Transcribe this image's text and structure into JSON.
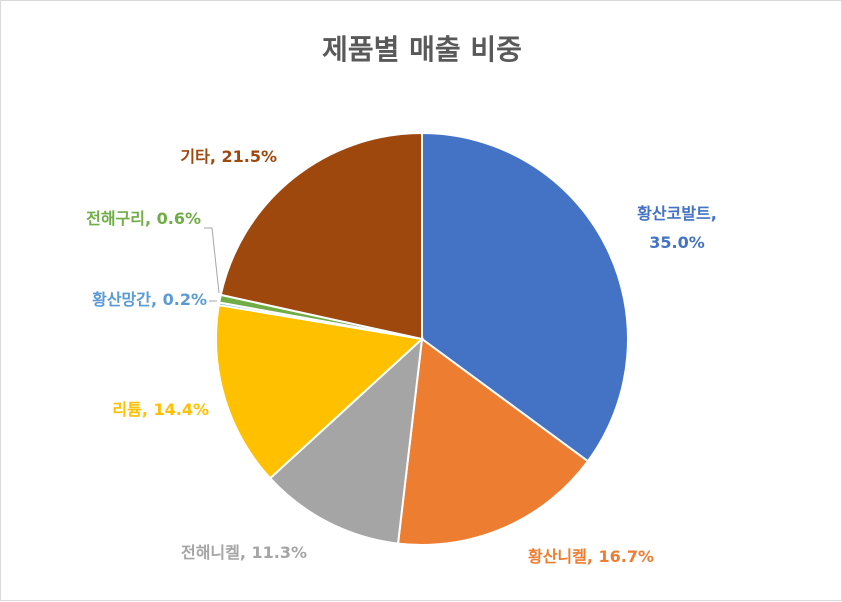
{
  "chart_data": {
    "type": "pie",
    "title": "제품별 매출 비중",
    "categories": [
      "황산코발트",
      "황산니켈",
      "전해니켈",
      "리튬",
      "황산망간",
      "전해구리",
      "기타"
    ],
    "values": [
      35.0,
      16.7,
      11.3,
      14.4,
      0.2,
      0.6,
      21.5
    ],
    "value_labels": [
      "35.0%",
      "16.7%",
      "11.3%",
      "14.4%",
      "0.2%",
      "0.6%",
      "21.5%"
    ],
    "colors": [
      "#4472c4",
      "#ed7d31",
      "#a5a5a5",
      "#ffc000",
      "#5b9bd5",
      "#70ad47",
      "#9e480e"
    ],
    "start_angle_deg": 0,
    "direction": "clockwise",
    "legend": "none",
    "data_labels": "outside with leader lines"
  }
}
